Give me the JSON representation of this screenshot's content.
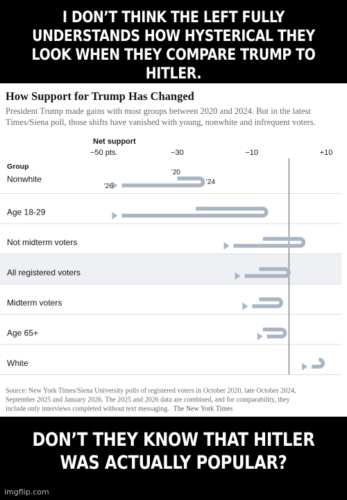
{
  "meme": {
    "top_text": "I DON’T THINK THE LEFT FULLY UNDERSTANDS HOW HYSTERICAL THEY LOOK WHEN THEY COMPARE TRUMP TO HITLER.",
    "bottom_text": "DON’T THEY KNOW THAT HITLER WAS ACTUALLY POPULAR?",
    "watermark": "imgflip.com"
  },
  "chart_data": {
    "type": "arrow",
    "title": "How Support for Trump Has Changed",
    "subtitle_lines": [
      "President Trump made gains with most groups between 2020 and 2024. But in the latest",
      "Times/Siena poll, those shifts have vanished with young, nonwhite and infrequent voters."
    ],
    "axis_title": "Net support",
    "x_ticks": [
      {
        "value": -50,
        "label": "−50 pts."
      },
      {
        "value": -30,
        "label": "−30"
      },
      {
        "value": -10,
        "label": "−10"
      },
      {
        "value": 10,
        "label": "+10"
      }
    ],
    "xlim": [
      -53,
      12
    ],
    "zero_line": 0,
    "group_header": "Group",
    "year_labels": {
      "y2020": "’20",
      "y2024": "’24",
      "y2026": "’26"
    },
    "series_colors": {
      "arrow": "#a9b5c4",
      "zero": "#555555",
      "alt_row": "#eef0f4"
    },
    "rows": [
      {
        "label": "Nonwhite",
        "v2020": -30,
        "v2024": -24,
        "v2026": -46
      },
      {
        "label": "Age 18-29",
        "v2020": -25,
        "v2024": -7,
        "v2026": -46
      },
      {
        "label": "Not midterm voters",
        "v2020": -7,
        "v2024": 3,
        "v2026": -16
      },
      {
        "label": "All registered voters",
        "v2020": -8,
        "v2024": -1,
        "v2026": -13
      },
      {
        "label": "Midterm voters",
        "v2020": -8,
        "v2024": -3,
        "v2026": -11
      },
      {
        "label": "Age 65+",
        "v2020": -7,
        "v2024": -2,
        "v2026": -7
      },
      {
        "label": "White",
        "v2020": 8,
        "v2024": 7,
        "v2026": 5
      }
    ],
    "source_lines": [
      "Source: New York Times/Siena University polls of registered voters in October 2020, late October 2024,",
      "September 2025 and January 2026. The 2025 and 2026 data are combined, and for comparability, they",
      "include only interviews completed without text messaging."
    ],
    "source_brand": "The New York Times"
  }
}
